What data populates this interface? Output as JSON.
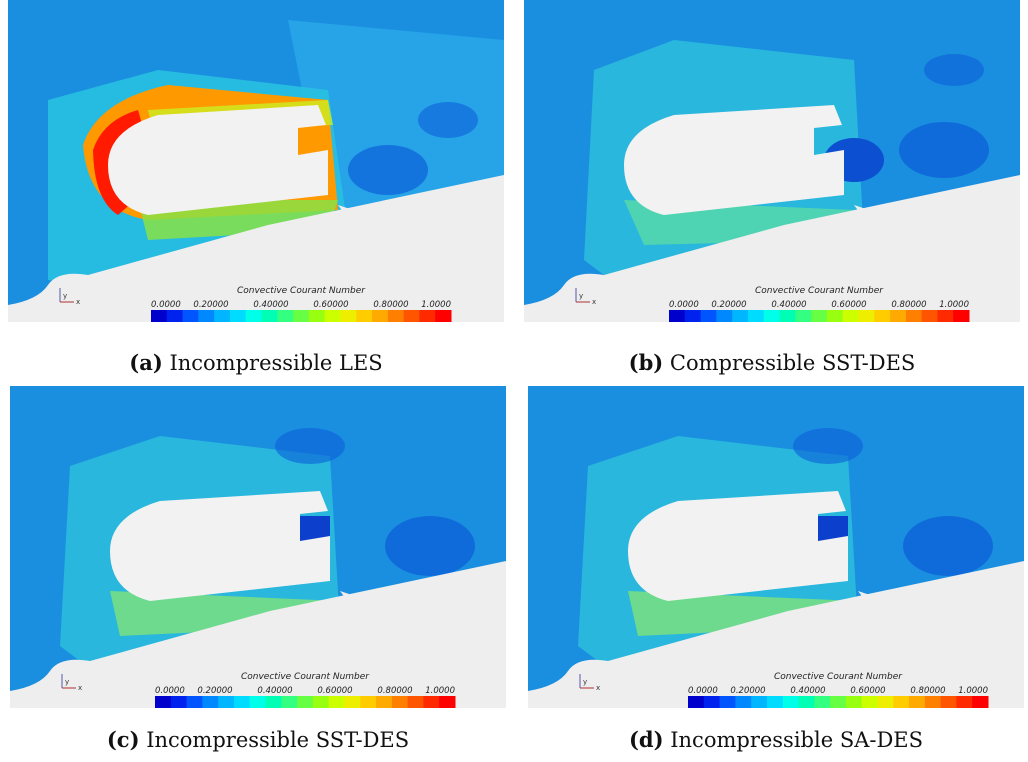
{
  "colorbar": {
    "title": "Convective Courant Number",
    "ticks": [
      "0.0000",
      "0.20000",
      "0.40000",
      "0.60000",
      "0.80000",
      "1.0000"
    ],
    "colors": [
      "#0000cc",
      "#0022ee",
      "#0055ff",
      "#0088ff",
      "#00b6ff",
      "#00dcff",
      "#00ffe8",
      "#00ffb4",
      "#33ff80",
      "#66ff44",
      "#99ff10",
      "#ccff00",
      "#eeee00",
      "#ffcc00",
      "#ffaa00",
      "#ff8000",
      "#ff5500",
      "#ff2a00",
      "#ff0000"
    ]
  },
  "axes_triad": {
    "y": "y",
    "x": "x"
  },
  "panels": [
    {
      "id": "a",
      "label": "(a)",
      "caption": "Incompressible LES"
    },
    {
      "id": "b",
      "label": "(b)",
      "caption": "Compressible SST-DES"
    },
    {
      "id": "c",
      "label": "(c)",
      "caption": "Incompressible SST-DES"
    },
    {
      "id": "d",
      "label": "(d)",
      "caption": "Incompressible SA-DES"
    }
  ],
  "palette": {
    "background": "#1a8fe0",
    "low": "#0c5fd8",
    "mid": "#2fd4d8",
    "high": "#7fe27a",
    "hot": "#ff1a00",
    "body": "#f2f2f2"
  }
}
